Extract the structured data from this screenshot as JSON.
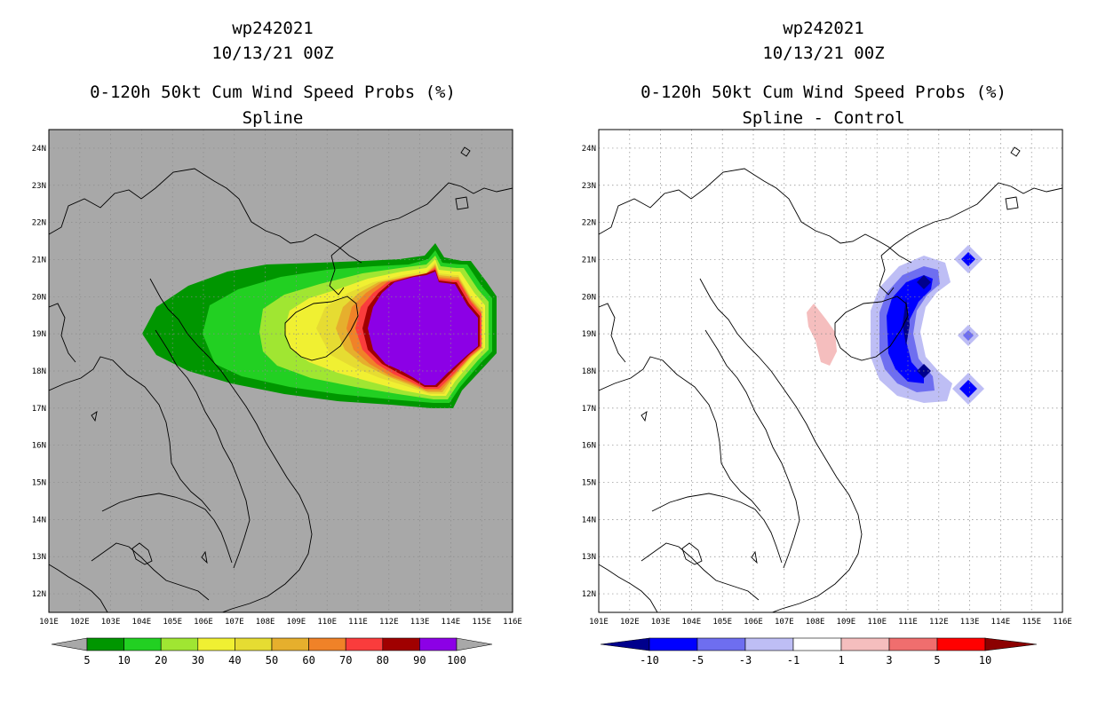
{
  "panels": [
    {
      "id": "left",
      "title_lines": [
        "wp242021",
        "10/13/21 00Z",
        "0-120h 50kt Cum Wind Speed Probs (%)",
        "Spline"
      ],
      "background": "#a8a8a8",
      "colorbar": {
        "labels": [
          "5",
          "10",
          "20",
          "30",
          "40",
          "50",
          "60",
          "70",
          "80",
          "90",
          "100"
        ],
        "colors": [
          "#009600",
          "#22d022",
          "#a0e632",
          "#f0f032",
          "#e6dc32",
          "#e6af2d",
          "#f08228",
          "#fa3c3c",
          "#a00000",
          "#8c00e6"
        ],
        "end_color": "#a8a8a8"
      }
    },
    {
      "id": "right",
      "title_lines": [
        "wp242021",
        "10/13/21 00Z",
        "0-120h 50kt Cum Wind Speed Probs (%)",
        "Spline - Control"
      ],
      "background": "#ffffff",
      "colorbar": {
        "labels": [
          "-10",
          "-5",
          "-3",
          "-1",
          "1",
          "3",
          "5",
          "10"
        ],
        "colors": [
          "#0000ff",
          "#6e6ef0",
          "#bebef5",
          "#ffffff",
          "#f5bebe",
          "#f06e6e",
          "#ff0000"
        ],
        "end_low": "#00008c",
        "end_high": "#8c0000"
      }
    }
  ],
  "axes": {
    "lon_labels": [
      "101E",
      "102E",
      "103E",
      "104E",
      "105E",
      "106E",
      "107E",
      "108E",
      "109E",
      "110E",
      "111E",
      "112E",
      "113E",
      "114E",
      "115E",
      "116E"
    ],
    "lat_labels": [
      "12N",
      "13N",
      "14N",
      "15N",
      "16N",
      "17N",
      "18N",
      "19N",
      "20N",
      "21N",
      "22N",
      "23N",
      "24N"
    ]
  }
}
